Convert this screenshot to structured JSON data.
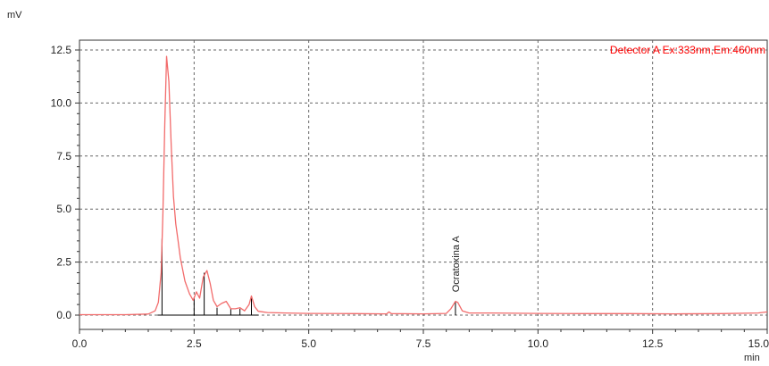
{
  "colors": {
    "trace": "#f26b6b",
    "legend": "#ff0000",
    "marker": "#000000",
    "grid": "#666666"
  },
  "chart_data": {
    "type": "line",
    "ylabel": "mV",
    "xlabel": "min",
    "xlim": [
      0,
      15
    ],
    "ylim": [
      -0.5,
      12.8
    ],
    "x_ticks": [
      0,
      2.5,
      5,
      7.5,
      10,
      12.5,
      15
    ],
    "x_tick_labels": [
      "0.0",
      "2.5",
      "5.0",
      "7.5",
      "10.0",
      "12.5",
      "15.0"
    ],
    "y_ticks": [
      0,
      2.5,
      5,
      7.5,
      10,
      12.5
    ],
    "y_tick_labels": [
      "0.0",
      "2.5",
      "5.0",
      "7.5",
      "10.0",
      "12.5"
    ],
    "grid": "dashed",
    "legend": {
      "text": "Detector A Ex:333nm,Em:460nm",
      "placement": "top-right"
    },
    "series": [
      {
        "name": "Detector A Ex:333nm,Em:460nm",
        "x": [
          0,
          1.0,
          1.5,
          1.65,
          1.72,
          1.78,
          1.82,
          1.86,
          1.9,
          1.95,
          2.0,
          2.05,
          2.1,
          2.15,
          2.2,
          2.3,
          2.4,
          2.48,
          2.55,
          2.62,
          2.7,
          2.78,
          2.85,
          2.92,
          3.0,
          3.1,
          3.2,
          3.3,
          3.4,
          3.5,
          3.6,
          3.7,
          3.75,
          3.82,
          3.9,
          4.1,
          4.5,
          5.0,
          6.0,
          6.7,
          6.75,
          6.8,
          7.5,
          8.0,
          8.1,
          8.2,
          8.25,
          8.35,
          8.5,
          9.0,
          10.0,
          11.0,
          12.0,
          13.0,
          14.0,
          14.8,
          15.0
        ],
        "y": [
          0.02,
          0.02,
          0.05,
          0.2,
          0.6,
          2.0,
          4.8,
          9.0,
          12.2,
          11.0,
          8.0,
          5.6,
          4.3,
          3.5,
          2.7,
          1.6,
          1.0,
          0.7,
          1.1,
          0.8,
          1.8,
          2.1,
          1.5,
          0.7,
          0.4,
          0.55,
          0.65,
          0.3,
          0.3,
          0.35,
          0.2,
          0.5,
          0.9,
          0.4,
          0.18,
          0.12,
          0.1,
          0.08,
          0.07,
          0.06,
          0.15,
          0.07,
          0.06,
          0.08,
          0.3,
          0.65,
          0.6,
          0.2,
          0.1,
          0.1,
          0.08,
          0.07,
          0.07,
          0.06,
          0.07,
          0.1,
          0.15
        ]
      }
    ],
    "peak_markers": [
      {
        "x": 1.8,
        "y": 3.6
      },
      {
        "x": 2.5,
        "y": 0.8
      },
      {
        "x": 2.72,
        "y": 2.0
      },
      {
        "x": 3.0,
        "y": 0.35
      },
      {
        "x": 3.3,
        "y": 0.3
      },
      {
        "x": 3.5,
        "y": 0.3
      },
      {
        "x": 3.75,
        "y": 0.9
      },
      {
        "x": 8.2,
        "y": 0.65
      }
    ],
    "annotations": [
      {
        "text": "Ocratoxina A",
        "x": 8.2,
        "y": 1.0
      }
    ]
  }
}
